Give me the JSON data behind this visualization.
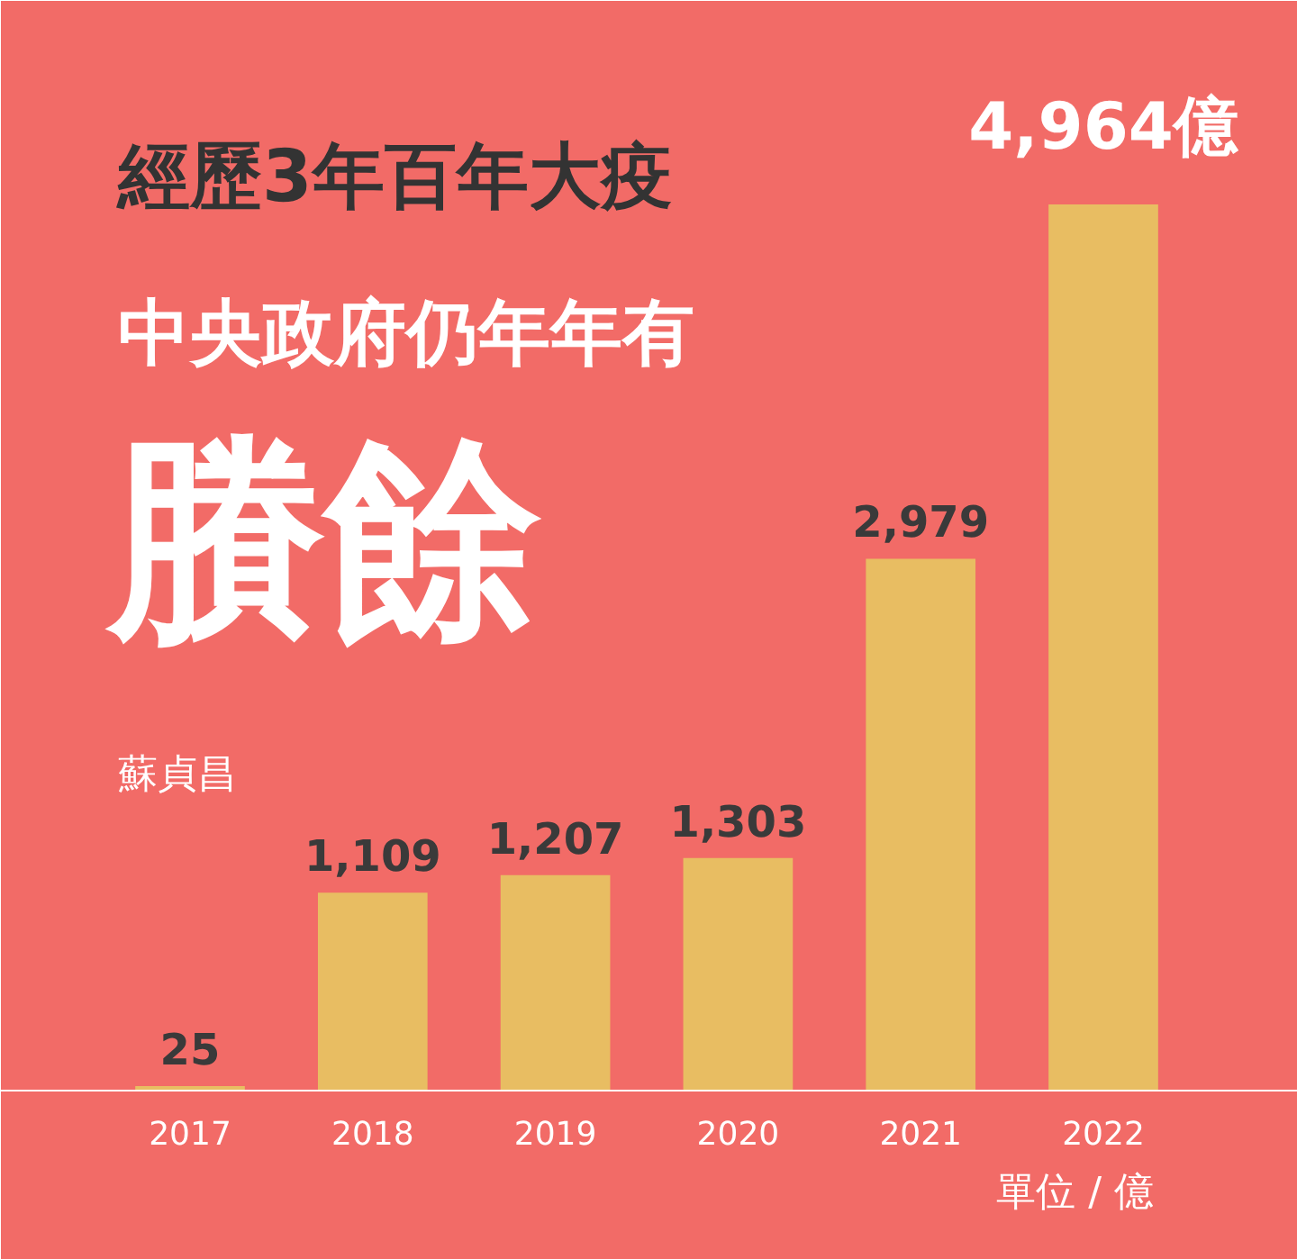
{
  "chart_data": {
    "type": "bar",
    "title": "經歷3年百年大疫",
    "subtitle": "中央政府仍年年有",
    "annotations": [
      "賸餘",
      "蘇貞昌",
      "單位 / 億"
    ],
    "categories": [
      "2017",
      "2018",
      "2019",
      "2020",
      "2021",
      "2022"
    ],
    "values": [
      25,
      1109,
      1207,
      1303,
      2979,
      4964
    ],
    "value_labels": [
      "25",
      "1,109",
      "1,207",
      "1,303",
      "2,979",
      "4,964億"
    ],
    "color": "#e8bd62",
    "grid": false
  }
}
